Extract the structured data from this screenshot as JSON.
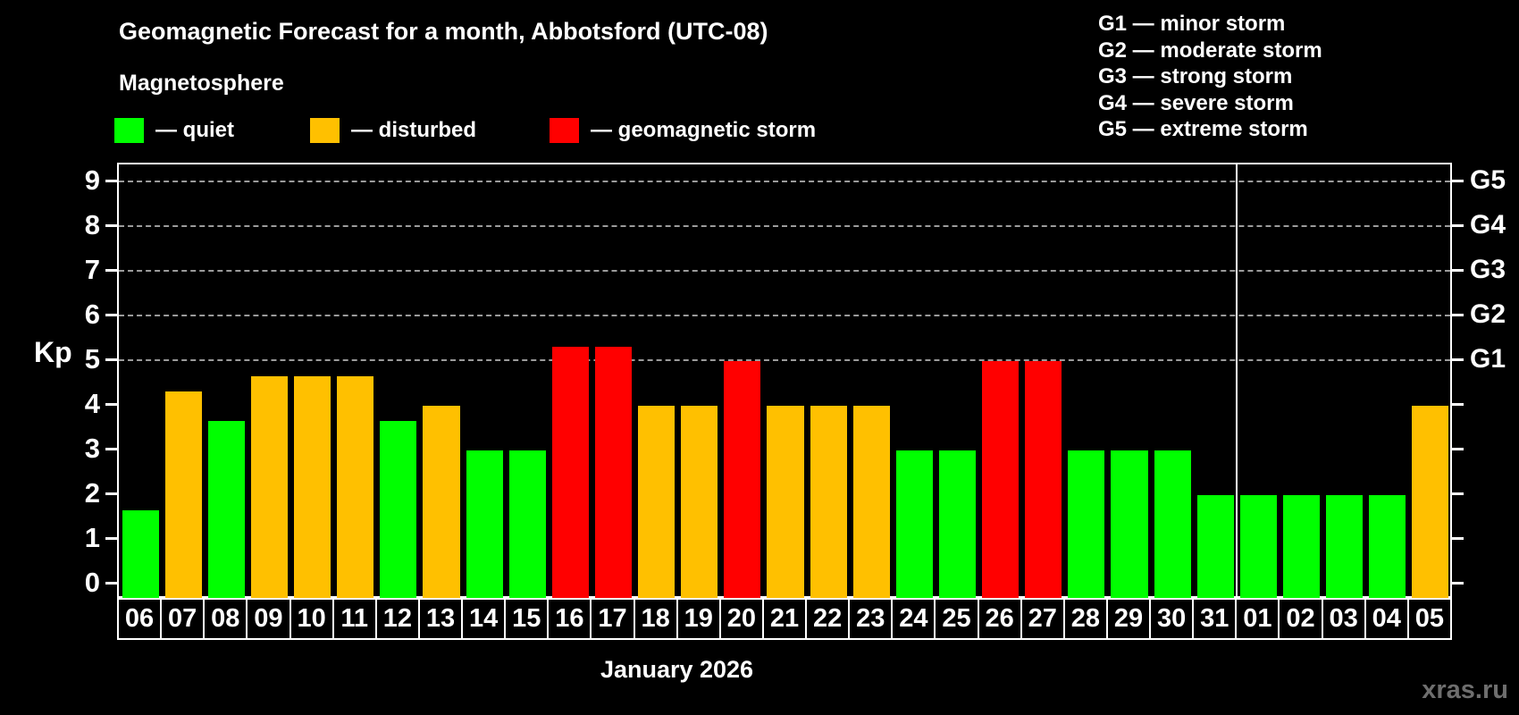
{
  "header": {
    "title": "Geomagnetic Forecast for a month, Abbotsford (UTC-08)",
    "subtitle": "Magnetosphere"
  },
  "legend": {
    "items": [
      {
        "label": "— quiet",
        "status": "quiet"
      },
      {
        "label": "— disturbed",
        "status": "disturbed"
      },
      {
        "label": "— geomagnetic storm",
        "status": "storm"
      }
    ]
  },
  "g_legend": {
    "items": [
      "G1 — minor storm",
      "G2 — moderate storm",
      "G3 — strong storm",
      "G4 — severe storm",
      "G5 — extreme storm"
    ]
  },
  "colors": {
    "quiet": "#00ff00",
    "disturbed": "#ffc000",
    "storm": "#ff0000",
    "background": "#000000",
    "axis": "#ffffff",
    "grid": "#9b9b9b",
    "watermark": "#6e6e6e"
  },
  "chart_data": {
    "type": "bar",
    "title": "Geomagnetic Forecast for a month, Abbotsford (UTC-08)",
    "xlabel": "January 2026",
    "ylabel": "Kp",
    "ylim": [
      0,
      9
    ],
    "grid": "horizontal dashed lines at Kp 5,6,7,8,9",
    "legend_position": "top",
    "categories": [
      "06",
      "07",
      "08",
      "09",
      "10",
      "11",
      "12",
      "13",
      "14",
      "15",
      "16",
      "17",
      "18",
      "19",
      "20",
      "21",
      "22",
      "23",
      "24",
      "25",
      "26",
      "27",
      "28",
      "29",
      "30",
      "31",
      "01",
      "02",
      "03",
      "04",
      "05"
    ],
    "values": [
      1.67,
      4.33,
      3.67,
      4.67,
      4.67,
      4.67,
      3.67,
      4,
      3,
      3,
      5.33,
      5.33,
      4,
      4,
      5,
      4,
      4,
      4,
      3,
      3,
      5,
      5,
      3,
      3,
      3,
      2,
      2,
      2,
      2,
      2,
      4
    ],
    "statuses": [
      "quiet",
      "disturbed",
      "quiet",
      "disturbed",
      "disturbed",
      "disturbed",
      "quiet",
      "disturbed",
      "quiet",
      "quiet",
      "storm",
      "storm",
      "disturbed",
      "disturbed",
      "storm",
      "disturbed",
      "disturbed",
      "disturbed",
      "quiet",
      "quiet",
      "storm",
      "storm",
      "quiet",
      "quiet",
      "quiet",
      "quiet",
      "quiet",
      "quiet",
      "quiet",
      "quiet",
      "disturbed"
    ],
    "y_ticks": [
      0,
      1,
      2,
      3,
      4,
      5,
      6,
      7,
      8,
      9
    ],
    "right_axis_labels": [
      {
        "kp": 5,
        "label": "G1"
      },
      {
        "kp": 6,
        "label": "G2"
      },
      {
        "kp": 7,
        "label": "G3"
      },
      {
        "kp": 8,
        "label": "G4"
      },
      {
        "kp": 9,
        "label": "G5"
      }
    ],
    "month_boundary_after_index": 25
  },
  "axes": {
    "y_label": "Kp",
    "x_title": "January 2026"
  },
  "footer": {
    "watermark": "xras.ru"
  }
}
